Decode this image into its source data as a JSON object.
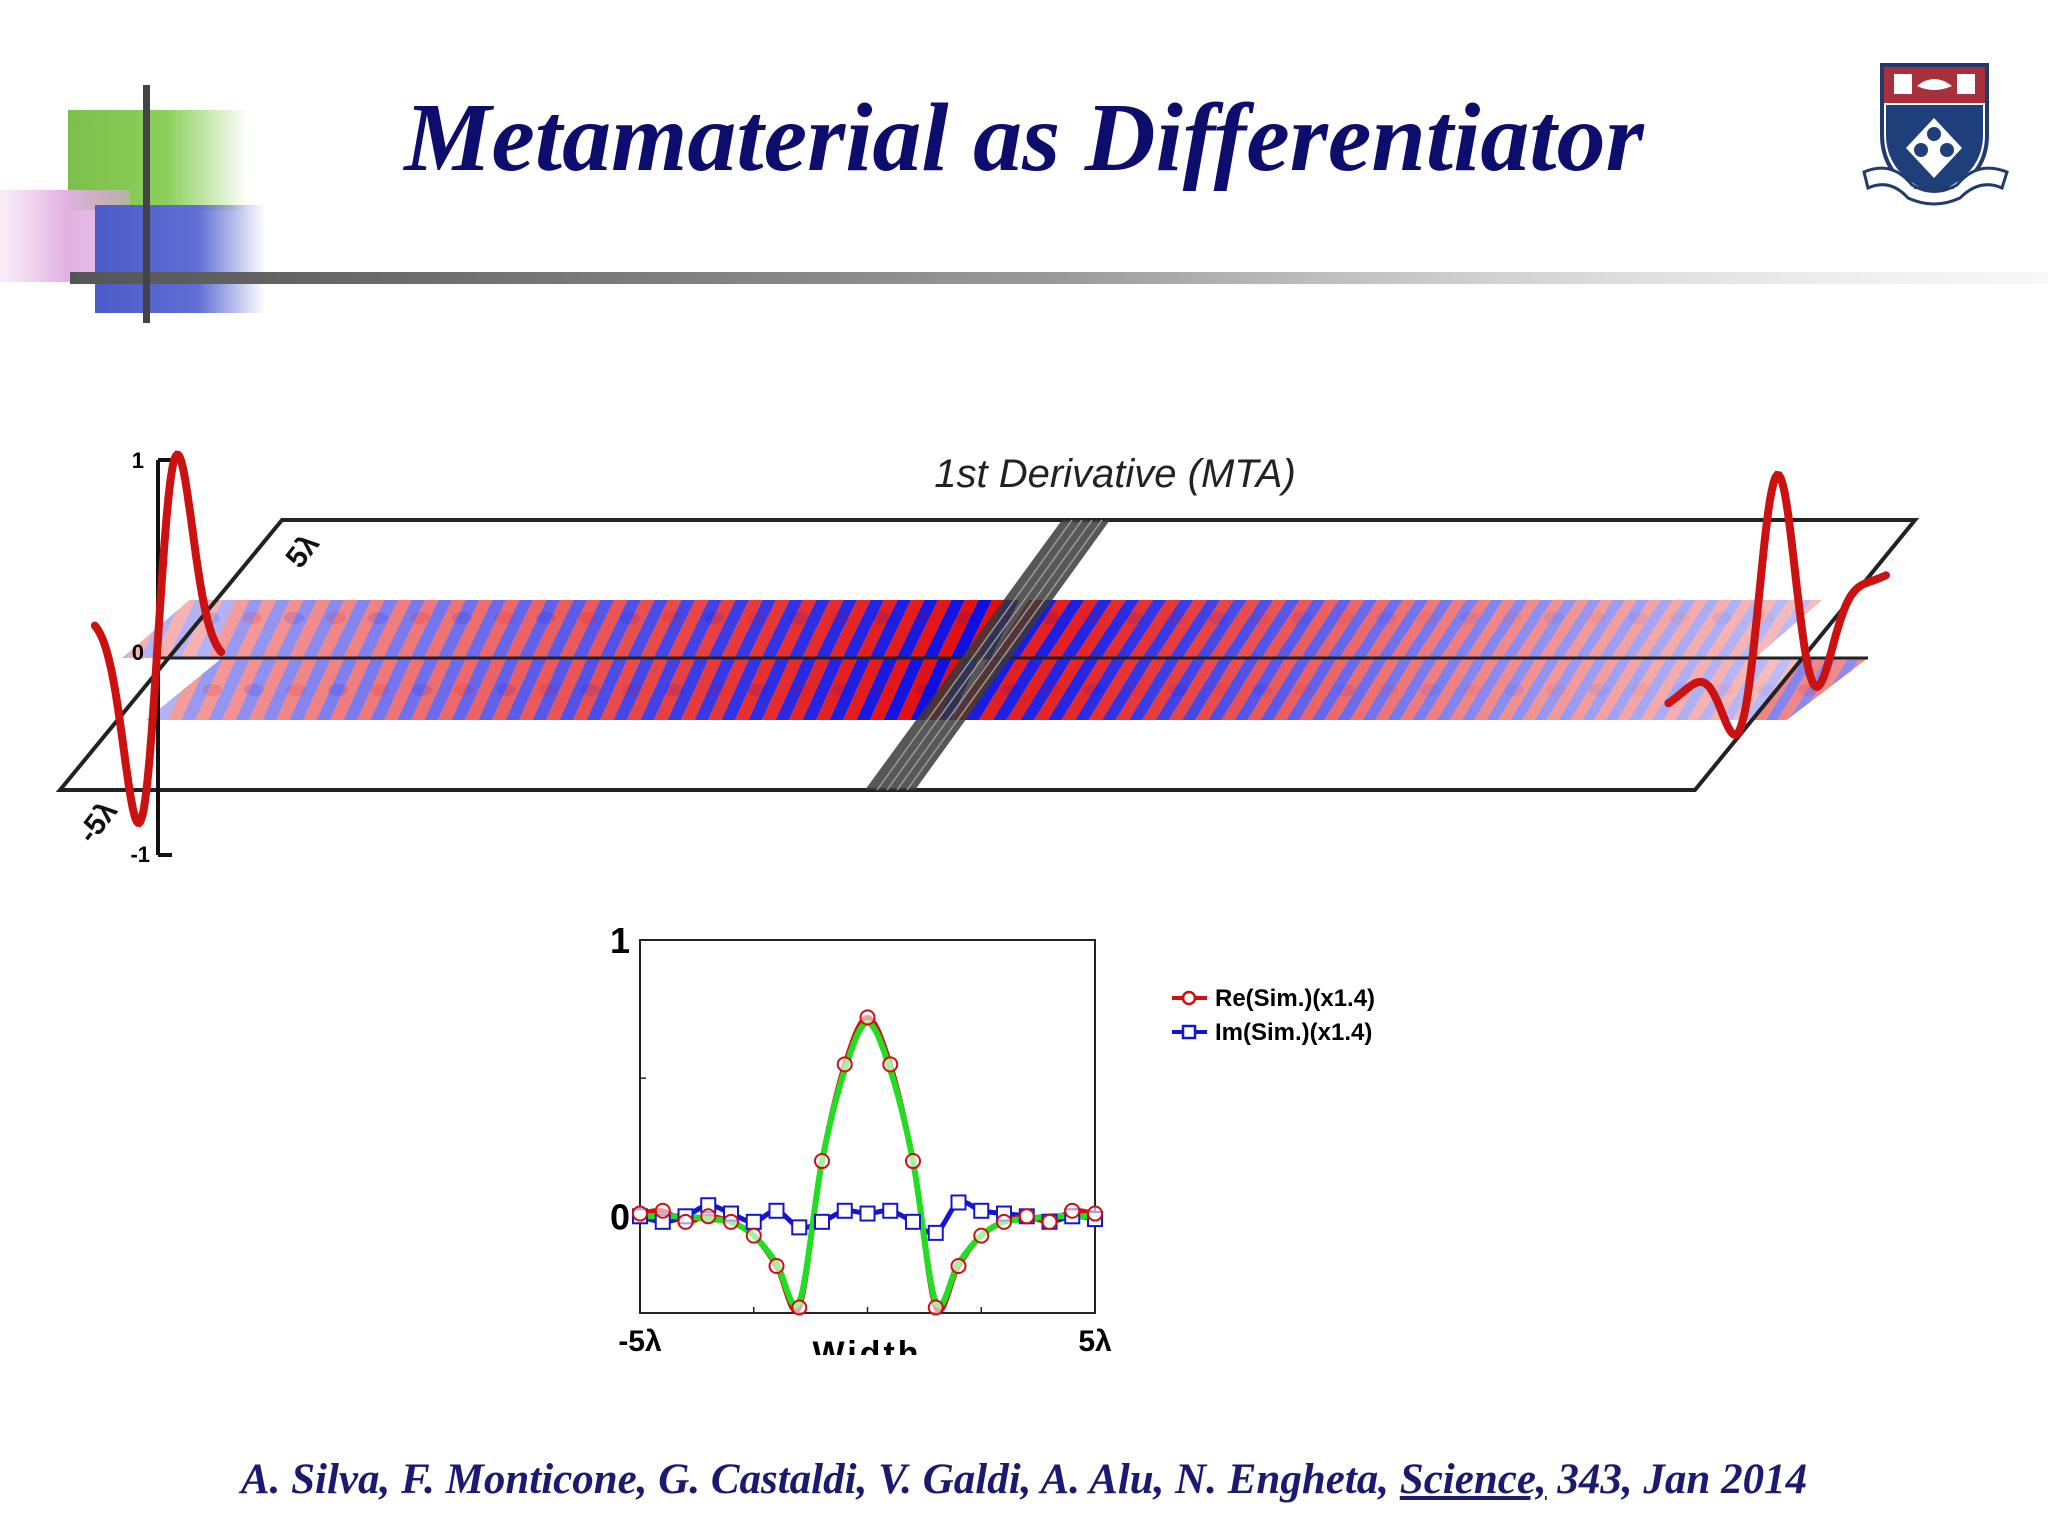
{
  "slide": {
    "title": "Metamaterial as Differentiator",
    "citation": {
      "authors": "A. Silva, F. Monticone, G. Castaldi, V. Galdi, A. Alu, N. Engheta, ",
      "journal": "Science,",
      "rest": " 343, Jan 2014"
    },
    "logo_icon": "university-shield-crest-icon"
  },
  "field_plot": {
    "title": "1st Derivative (MTA)",
    "axis_ticks": [
      "1",
      "0",
      "-1"
    ],
    "edge_labels": [
      "5λ",
      "-5λ"
    ],
    "colors": {
      "positive": "#e00000",
      "negative": "#0000dd",
      "curve": "#cc0000"
    }
  },
  "chart_data": {
    "type": "line",
    "x": [
      -5,
      -4.5,
      -4,
      -3.5,
      -3,
      -2.5,
      -2,
      -1.5,
      -1,
      -0.5,
      0,
      0.5,
      1,
      1.5,
      2,
      2.5,
      3,
      3.5,
      4,
      4.5,
      5
    ],
    "xticks": [
      "-5λ",
      "5λ"
    ],
    "xlabel": "Width",
    "yticks": [
      "1",
      "0"
    ],
    "ylim": [
      -0.35,
      1.0
    ],
    "xlim": [
      -5,
      5
    ],
    "series": [
      {
        "name": "Re(Sim.)(x1.4)",
        "color": "#d01010",
        "marker": "circle",
        "values": [
          0.01,
          0.02,
          -0.02,
          0.0,
          -0.02,
          -0.07,
          -0.18,
          -0.33,
          0.2,
          0.55,
          0.72,
          0.55,
          0.2,
          -0.33,
          -0.18,
          -0.07,
          -0.02,
          0.0,
          -0.02,
          0.02,
          0.01
        ]
      },
      {
        "name": "Im(Sim.)(x1.4)",
        "color": "#1515d0",
        "marker": "square",
        "values": [
          0.0,
          -0.02,
          0.0,
          0.04,
          0.01,
          -0.02,
          0.02,
          -0.04,
          -0.02,
          0.02,
          0.01,
          0.02,
          -0.02,
          -0.06,
          0.05,
          0.02,
          0.01,
          0.0,
          -0.02,
          0.0,
          -0.01
        ]
      },
      {
        "name": "",
        "color": "#22dd22",
        "marker": "none",
        "values": [
          0.0,
          0.0,
          0.0,
          -0.01,
          -0.02,
          -0.07,
          -0.17,
          -0.31,
          0.2,
          0.53,
          0.7,
          0.53,
          0.2,
          -0.31,
          -0.17,
          -0.07,
          -0.02,
          -0.01,
          0.0,
          0.0,
          0.0
        ]
      }
    ]
  }
}
